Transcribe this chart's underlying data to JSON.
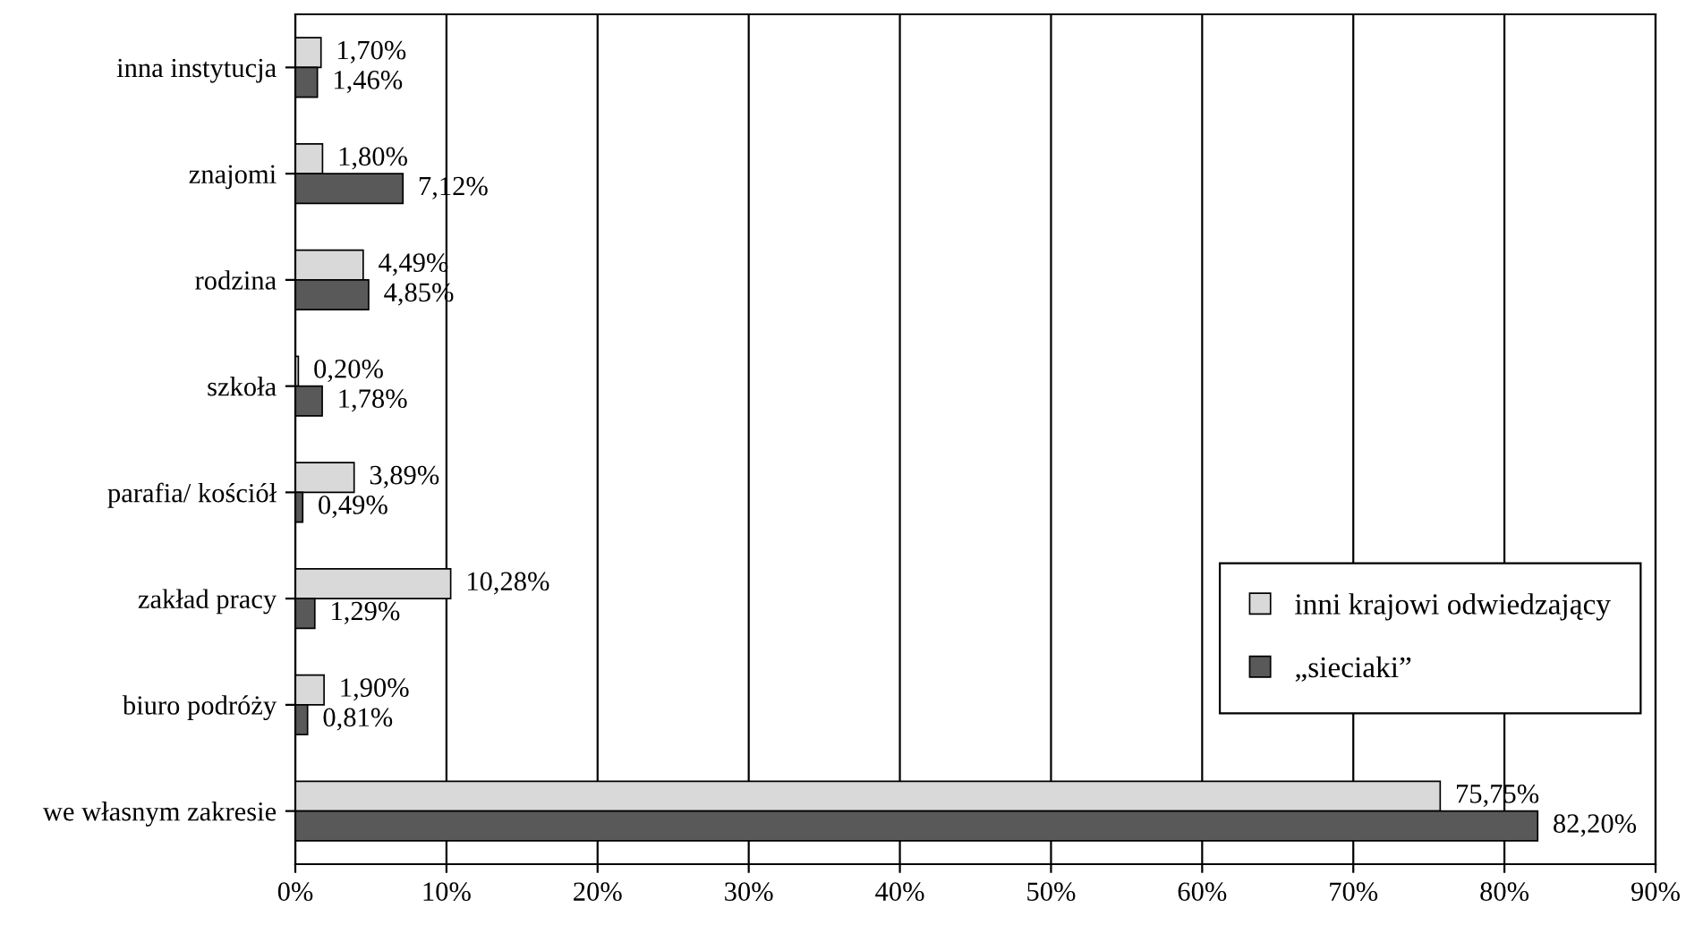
{
  "chart_data": {
    "type": "bar",
    "orientation": "horizontal",
    "categories": [
      "inna instytucja",
      "znajomi",
      "rodzina",
      "szkoła",
      "parafia/ kościół",
      "zakład pracy",
      "biuro podróży",
      "we własnym zakresie"
    ],
    "series": [
      {
        "name": "inni krajowi odwiedzający",
        "color": "#d9d9d9",
        "values": [
          1.7,
          1.8,
          4.49,
          0.2,
          3.89,
          10.28,
          1.9,
          75.75
        ],
        "value_labels": [
          "1,70%",
          "1,80%",
          "4,49%",
          "0,20%",
          "3,89%",
          "10,28%",
          "1,90%",
          "75,75%"
        ]
      },
      {
        "name": "„sieciaki”",
        "color": "#595959",
        "values": [
          1.46,
          7.12,
          4.85,
          1.78,
          0.49,
          1.29,
          0.81,
          82.2
        ],
        "value_labels": [
          "1,46%",
          "7,12%",
          "4,85%",
          "1,78%",
          "0,49%",
          "1,29%",
          "0,81%",
          "82,20%"
        ]
      }
    ],
    "xlim": [
      0,
      90
    ],
    "xticks": [
      {
        "value": 0,
        "label": "0%"
      },
      {
        "value": 10,
        "label": "10%"
      },
      {
        "value": 20,
        "label": "20%"
      },
      {
        "value": 30,
        "label": "30%"
      },
      {
        "value": 40,
        "label": "40%"
      },
      {
        "value": 50,
        "label": "50%"
      },
      {
        "value": 60,
        "label": "60%"
      },
      {
        "value": 70,
        "label": "70%"
      },
      {
        "value": 80,
        "label": "80%"
      },
      {
        "value": 90,
        "label": "90%"
      }
    ],
    "grid": "x",
    "legend": "bottom right"
  }
}
